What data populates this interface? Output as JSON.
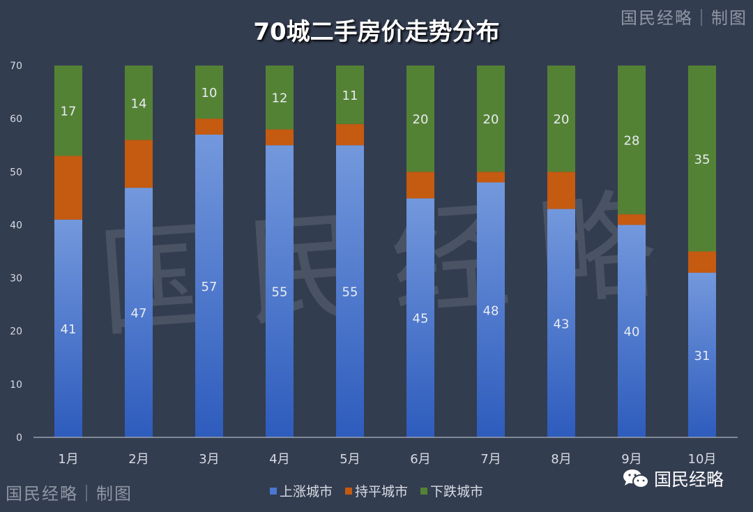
{
  "chart_data": {
    "type": "bar",
    "stacked": true,
    "title": "70城二手房价走势分布",
    "categories": [
      "1月",
      "2月",
      "3月",
      "4月",
      "5月",
      "6月",
      "7月",
      "8月",
      "9月",
      "10月"
    ],
    "series": [
      {
        "name": "上涨城市",
        "color": "#4a78d0",
        "values": [
          41,
          47,
          57,
          55,
          55,
          45,
          48,
          43,
          40,
          31
        ]
      },
      {
        "name": "持平城市",
        "color": "#c55a11",
        "values": [
          12,
          9,
          3,
          3,
          4,
          5,
          2,
          7,
          2,
          4
        ]
      },
      {
        "name": "下跌城市",
        "color": "#548235",
        "values": [
          17,
          14,
          10,
          12,
          11,
          20,
          20,
          20,
          28,
          35
        ]
      }
    ],
    "labeled_series": [
      "上涨城市",
      "下跌城市"
    ],
    "ylim": [
      0,
      70
    ],
    "yticks": [
      0,
      10,
      20,
      30,
      40,
      50,
      60,
      70
    ],
    "grid": false,
    "legend": "bottom"
  },
  "watermark": {
    "corner": "国民经略｜制图",
    "big": "国民经略"
  },
  "brand": {
    "label": "国民经略",
    "icon": "wechat-icon"
  }
}
